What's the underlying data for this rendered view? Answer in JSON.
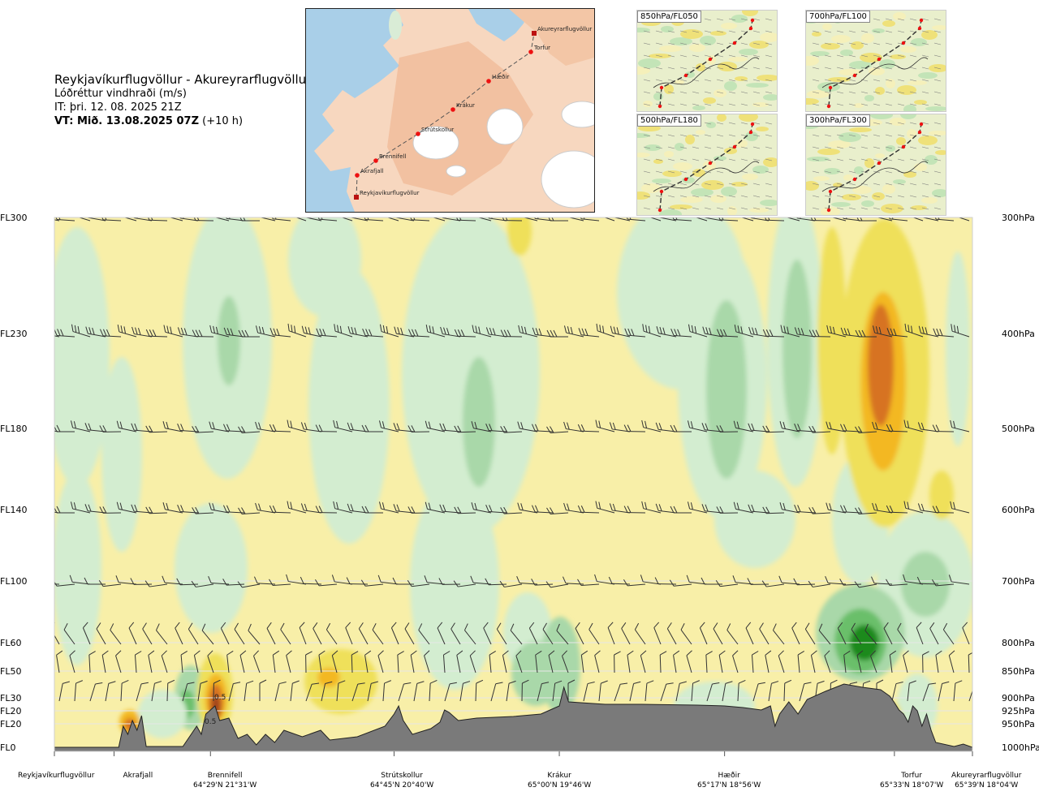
{
  "header": {
    "route": "Reykjavíkurflugvöllur - Akureyrarflugvöllur",
    "variable": "Lóðréttur vindhraði (m/s)",
    "issue_time": "IT: þri. 12. 08. 2025 21Z",
    "valid_bold": "VT: Mið. 13.08.2025 07Z",
    "valid_offset": " (+10 h)"
  },
  "map": {
    "waypoints": [
      "Akureyrarflugvöllur",
      "Torfur",
      "Hæðir",
      "Krákur",
      "Strútskollur",
      "Brennifell",
      "Akrafjall",
      "Reykjavíkurflugvöllur"
    ]
  },
  "thumbnails": [
    {
      "label": "850hPa/FL050"
    },
    {
      "label": "700hPa/FL100"
    },
    {
      "label": "500hPa/FL180"
    },
    {
      "label": "300hPa/FL300"
    }
  ],
  "chart_data": {
    "type": "heatmap",
    "title": "Lóðréttur vindhraði (m/s)",
    "annotations": [
      "0.5",
      "0.5"
    ],
    "flight_levels": [
      {
        "fl": "FL300",
        "hpa": "300hPa",
        "p": 300
      },
      {
        "fl": "FL230",
        "hpa": "400hPa",
        "p": 400
      },
      {
        "fl": "FL180",
        "hpa": "500hPa",
        "p": 500
      },
      {
        "fl": "FL140",
        "hpa": "600hPa",
        "p": 600
      },
      {
        "fl": "FL100",
        "hpa": "700hPa",
        "p": 700
      },
      {
        "fl": "FL60",
        "hpa": "800hPa",
        "p": 800
      },
      {
        "fl": "FL50",
        "hpa": "850hPa",
        "p": 850
      },
      {
        "fl": "FL30",
        "hpa": "900hPa",
        "p": 900
      },
      {
        "fl": "FL20",
        "hpa": "925hPa",
        "p": 925
      },
      {
        "fl": "FL20",
        "hpa": "950hPa",
        "p": 950
      },
      {
        "fl": "FL0",
        "hpa": "1000hPa",
        "p": 1000
      }
    ],
    "waypoints": [
      {
        "name": "Reykjavíkurflugvöllur",
        "coord": "",
        "d": 0
      },
      {
        "name": "Akrafjall",
        "coord": "",
        "d": 0.065
      },
      {
        "name": "Brennifell",
        "coord": "64°29'N 21°31'W",
        "d": 0.17
      },
      {
        "name": "Strútskollur",
        "coord": "64°45'N 20°40'W",
        "d": 0.37
      },
      {
        "name": "Krákur",
        "coord": "65°00'N 19°46'W",
        "d": 0.55
      },
      {
        "name": "Hæðir",
        "coord": "65°17'N 18°56'W",
        "d": 0.73
      },
      {
        "name": "Torfur",
        "coord": "65°33'N 18°07'W",
        "d": 0.915
      },
      {
        "name": "Akureyrarflugvöllur",
        "coord": "65°39'N 18°04'W",
        "d": 1.0
      }
    ],
    "colors": {
      "strong_down": "#1a8a1a",
      "mod_down": "#6bbf6b",
      "weak_down": "#a9d8a9",
      "slight_down": "#d3edd0",
      "near_zero": "#fffbe6",
      "slight_up": "#f8efa8",
      "weak_up": "#efe05a",
      "mod_up": "#f3b824",
      "strong_up": "#d77320",
      "very_strong_up": "#a0451c",
      "terrain": "#7a7a7a"
    }
  }
}
